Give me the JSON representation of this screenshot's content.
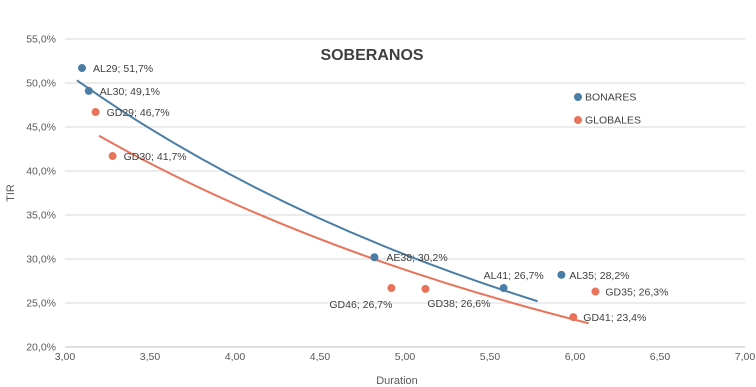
{
  "chart_data": {
    "type": "scatter",
    "title": "SOBERANOS",
    "xlabel": "Duration",
    "ylabel": "TIR",
    "xlim": [
      3.0,
      7.0
    ],
    "ylim": [
      20.0,
      55.0
    ],
    "x_ticks": [
      "3,00",
      "3,50",
      "4,00",
      "4,50",
      "5,00",
      "5,50",
      "6,00",
      "6,50",
      "7,00"
    ],
    "y_ticks": [
      "20,0%",
      "25,0%",
      "30,0%",
      "35,0%",
      "40,0%",
      "45,0%",
      "50,0%",
      "55,0%"
    ],
    "grid": "horizontal",
    "legend_position": "right",
    "series": [
      {
        "name": "BONARES",
        "color": "#4a7ea6",
        "points": [
          {
            "x": 3.1,
            "y": 51.7,
            "label": "AL29; 51,7%"
          },
          {
            "x": 3.14,
            "y": 49.1,
            "label": "AL30; 49,1%"
          },
          {
            "x": 4.82,
            "y": 30.2,
            "label": "AE38; 30,2%"
          },
          {
            "x": 5.58,
            "y": 26.7,
            "label": "AL41; 26,7%"
          },
          {
            "x": 5.92,
            "y": 28.2,
            "label": "AL35; 28,2%"
          }
        ],
        "trend": {
          "x_start": 3.07,
          "x_end": 5.78,
          "y_start": 50.3,
          "y_end": 25.2
        }
      },
      {
        "name": "GLOBALES",
        "color": "#e8735a",
        "points": [
          {
            "x": 3.18,
            "y": 46.7,
            "label": "GD29; 46,7%"
          },
          {
            "x": 3.28,
            "y": 41.7,
            "label": "GD30; 41,7%"
          },
          {
            "x": 4.92,
            "y": 26.7,
            "label": "GD46; 26,7%"
          },
          {
            "x": 5.12,
            "y": 26.6,
            "label": "GD38; 26,6%"
          },
          {
            "x": 6.12,
            "y": 26.3,
            "label": "GD35; 26,3%"
          },
          {
            "x": 5.99,
            "y": 23.4,
            "label": "GD41; 23,4%"
          }
        ],
        "trend": {
          "x_start": 3.2,
          "x_end": 6.08,
          "y_start": 44.0,
          "y_end": 22.7
        }
      }
    ]
  }
}
